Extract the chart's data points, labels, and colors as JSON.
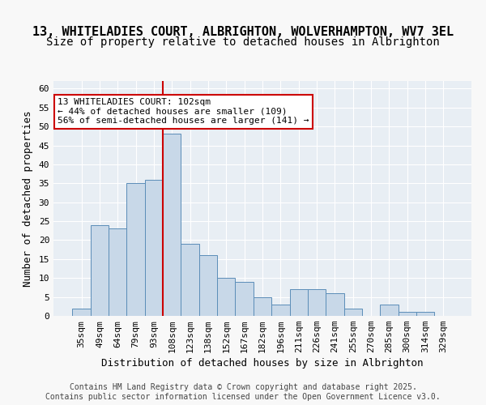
{
  "title_line1": "13, WHITELADIES COURT, ALBRIGHTON, WOLVERHAMPTON, WV7 3EL",
  "title_line2": "Size of property relative to detached houses in Albrighton",
  "xlabel": "Distribution of detached houses by size in Albrighton",
  "ylabel": "Number of detached properties",
  "categories": [
    "35sqm",
    "49sqm",
    "64sqm",
    "79sqm",
    "93sqm",
    "108sqm",
    "123sqm",
    "138sqm",
    "152sqm",
    "167sqm",
    "182sqm",
    "196sqm",
    "211sqm",
    "226sqm",
    "241sqm",
    "255sqm",
    "270sqm",
    "285sqm",
    "300sqm",
    "314sqm",
    "329sqm"
  ],
  "values": [
    2,
    24,
    23,
    35,
    36,
    48,
    19,
    16,
    10,
    9,
    5,
    3,
    7,
    7,
    6,
    2,
    0,
    3,
    1,
    1,
    0
  ],
  "bar_color": "#c8d8e8",
  "bar_edge_color": "#5b8db8",
  "bar_width": 1.0,
  "ylim": [
    0,
    62
  ],
  "yticks": [
    0,
    5,
    10,
    15,
    20,
    25,
    30,
    35,
    40,
    45,
    50,
    55,
    60
  ],
  "vline_x": 4.5,
  "vline_color": "#cc0000",
  "annotation_text": "13 WHITELADIES COURT: 102sqm\n← 44% of detached houses are smaller (109)\n56% of semi-detached houses are larger (141) →",
  "annotation_box_color": "#ffffff",
  "annotation_box_edge": "#cc0000",
  "bg_color": "#e8eef4",
  "grid_color": "#ffffff",
  "footer": "Contains HM Land Registry data © Crown copyright and database right 2025.\nContains public sector information licensed under the Open Government Licence v3.0.",
  "title_fontsize": 11,
  "subtitle_fontsize": 10,
  "axis_label_fontsize": 9,
  "tick_fontsize": 8,
  "annotation_fontsize": 8
}
